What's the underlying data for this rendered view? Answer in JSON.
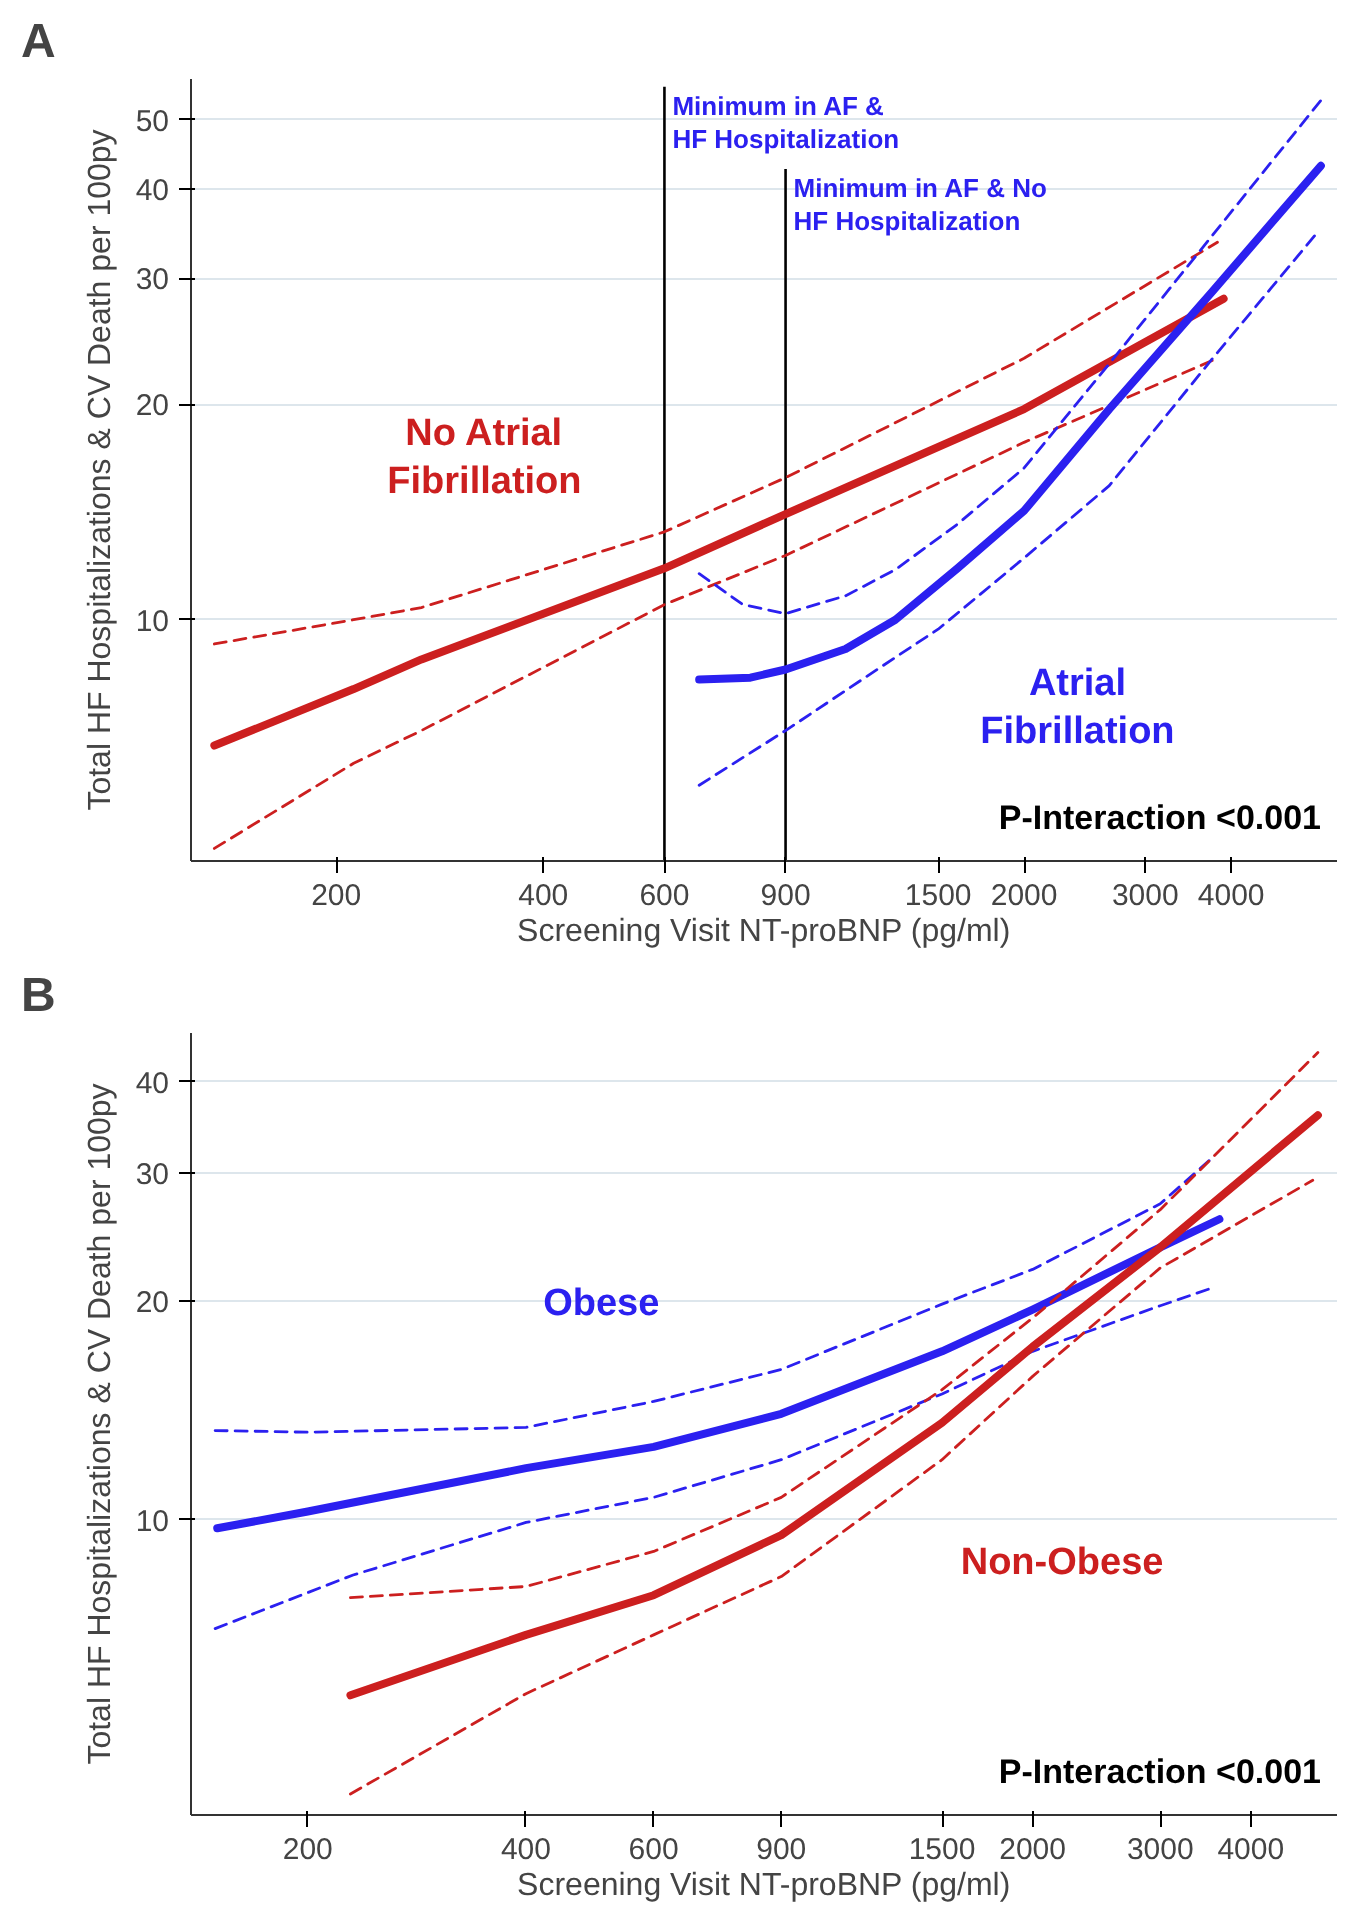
{
  "chart_data": [
    {
      "type": "line",
      "title": "A",
      "xlabel": "Screening Visit NT-proBNP (pg/ml)",
      "ylabel": "Total HF Hospitalizations & CV Death per 100py",
      "log": "xy",
      "grid": "y",
      "xlim": [
        123,
        5700
      ],
      "ylim": [
        4.6,
        57
      ],
      "xticks": [
        200,
        400,
        600,
        900,
        1500,
        2000,
        3000,
        4000
      ],
      "yticks": [
        10,
        20,
        30,
        40,
        50
      ],
      "series": [
        {
          "name": "No Atrial\nFibrillation",
          "color": "#cc1f1f",
          "line_style": "solid",
          "x": [
            133,
            212,
            266,
            600,
            900,
            2000,
            3900
          ],
          "values": [
            6.67,
            8.0,
            8.8,
            11.8,
            14.05,
            19.7,
            28.1
          ]
        },
        {
          "color": "#cc1f1f",
          "line_style": "dashed",
          "x": [
            133,
            212,
            266,
            600,
            900,
            2000,
            3820
          ],
          "values": [
            9.25,
            10.0,
            10.4,
            13.27,
            15.8,
            23.2,
            33.7
          ]
        },
        {
          "color": "#cc1f1f",
          "line_style": "dashed",
          "x": [
            133,
            212,
            266,
            600,
            900,
            2000,
            3820
          ],
          "values": [
            4.79,
            6.3,
            7.0,
            10.5,
            12.3,
            17.7,
            23.2
          ]
        },
        {
          "name": "Atrial\nFibrillation",
          "color": "#2b20f0",
          "line_style": "solid",
          "x": [
            674,
            800,
            900,
            1100,
            1300,
            1600,
            2000,
            2660,
            3760,
            5400
          ],
          "values": [
            8.25,
            8.3,
            8.52,
            9.1,
            10.0,
            11.8,
            14.2,
            19.7,
            28.8,
            43.1
          ]
        },
        {
          "color": "#2b20f0",
          "line_style": "dashed",
          "x": [
            674,
            780,
            900,
            1100,
            1300,
            1600,
            2000,
            2660,
            3760,
            5400
          ],
          "values": [
            11.6,
            10.5,
            10.2,
            10.8,
            11.75,
            13.6,
            16.3,
            22.8,
            34.5,
            53.2
          ]
        },
        {
          "color": "#2b20f0",
          "line_style": "dashed",
          "x": [
            674,
            900,
            1300,
            1500,
            2000,
            2660,
            3760,
            5300
          ],
          "values": [
            5.87,
            7.0,
            8.86,
            9.7,
            12.2,
            15.4,
            23.2,
            34.5
          ]
        }
      ],
      "ref_lines": [
        {
          "axis": "x",
          "value": 600,
          "label": "Minimum in AF &\nHF Hospitalization",
          "color": "#000000"
        },
        {
          "axis": "x",
          "value": 900,
          "label": "Minimum in AF & No\nHF Hospitalization",
          "color": "#000000"
        }
      ],
      "annotations": [
        "P-Interaction <0.001"
      ]
    },
    {
      "type": "line",
      "title": "B",
      "xlabel": "Screening Visit NT-proBNP (pg/ml)",
      "ylabel": "Total HF Hospitalizations & CV Death per 100py",
      "log": "xy",
      "grid": "y",
      "xlim": [
        138,
        5260
      ],
      "ylim": [
        3.93,
        46.7
      ],
      "xticks": [
        200,
        400,
        600,
        900,
        1500,
        2000,
        3000,
        4000
      ],
      "yticks": [
        10,
        20,
        30,
        40
      ],
      "series": [
        {
          "name": "Obese",
          "color": "#2b20f0",
          "line_style": "solid",
          "x": [
            150,
            200,
            400,
            600,
            900,
            1500,
            2000,
            3000,
            3620
          ],
          "values": [
            9.74,
            10.27,
            11.78,
            12.6,
            13.99,
            17.05,
            19.46,
            23.7,
            25.9
          ]
        },
        {
          "color": "#2b20f0",
          "line_style": "dashed",
          "x": [
            149,
            200,
            400,
            600,
            900,
            1500,
            2000,
            3000,
            3570
          ],
          "values": [
            13.27,
            13.2,
            13.4,
            14.55,
            16.1,
            19.8,
            22.1,
            27.2,
            31.7
          ]
        },
        {
          "color": "#2b20f0",
          "line_style": "dashed",
          "x": [
            149,
            231,
            400,
            600,
            900,
            1500,
            2000,
            3000,
            3570
          ],
          "values": [
            7.09,
            8.4,
            9.92,
            10.74,
            12.1,
            14.9,
            17.05,
            19.7,
            20.9
          ]
        },
        {
          "name": "Non-Obese",
          "color": "#cc1f1f",
          "line_style": "solid",
          "x": [
            229,
            400,
            600,
            900,
            1500,
            2000,
            3000,
            4950
          ],
          "values": [
            5.74,
            6.95,
            7.88,
            9.53,
            13.6,
            17.3,
            23.7,
            36.0
          ]
        },
        {
          "color": "#cc1f1f",
          "line_style": "dashed",
          "x": [
            229,
            400,
            600,
            900,
            1500,
            2000,
            3000,
            4950
          ],
          "values": [
            7.82,
            8.1,
            9.05,
            10.74,
            15.1,
            18.95,
            26.7,
            43.9
          ]
        },
        {
          "color": "#cc1f1f",
          "line_style": "dashed",
          "x": [
            229,
            400,
            600,
            900,
            1500,
            2000,
            3000,
            4870
          ],
          "values": [
            4.2,
            5.77,
            6.95,
            8.36,
            12.1,
            15.75,
            22.2,
            29.3
          ]
        }
      ],
      "annotations": [
        "P-Interaction <0.001"
      ]
    }
  ]
}
